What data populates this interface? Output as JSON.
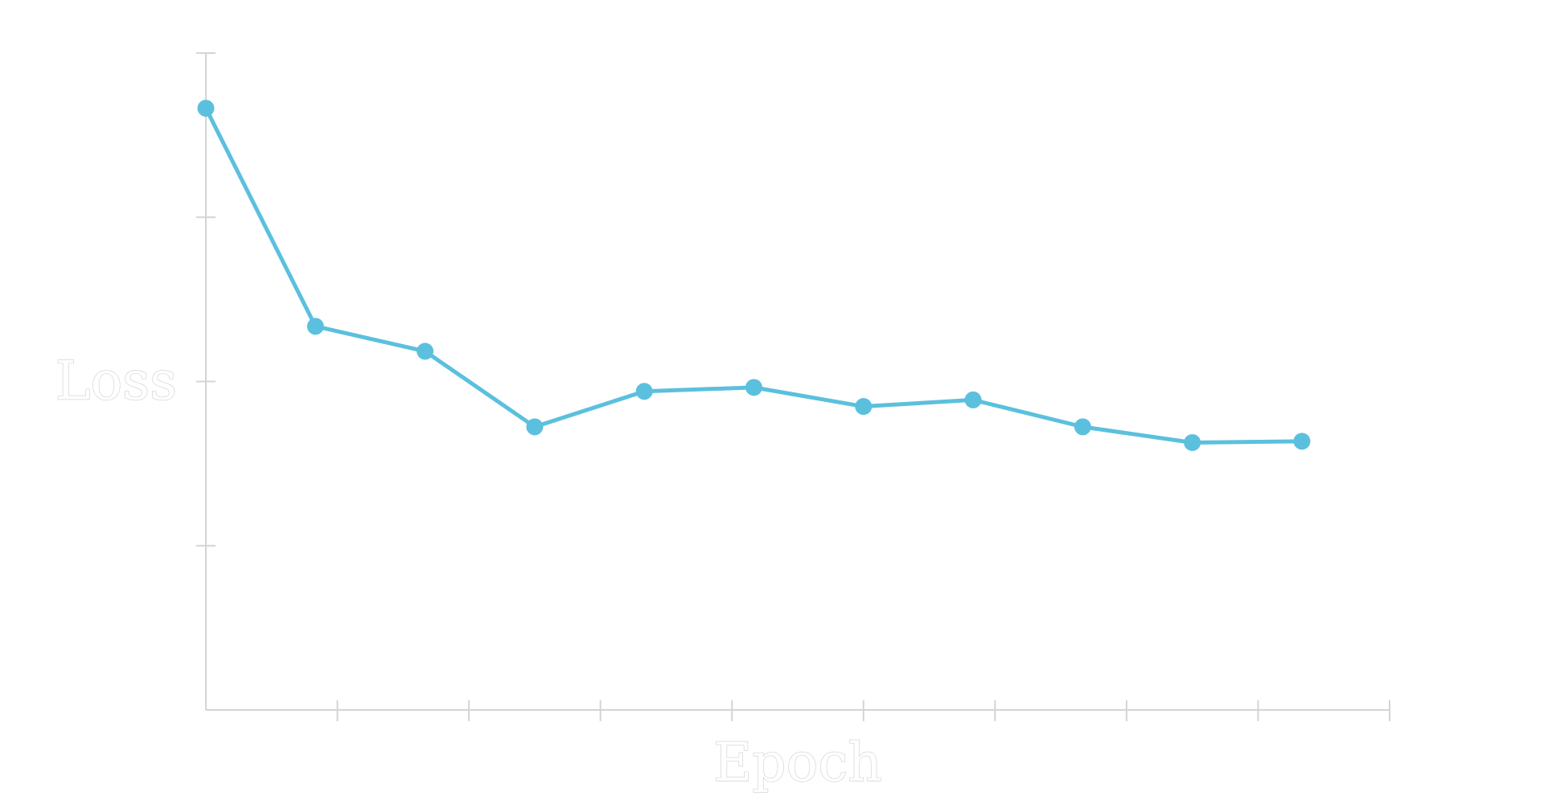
{
  "chart_data": {
    "type": "line",
    "title": "",
    "xlabel": "Epoch",
    "ylabel": "Loss",
    "x": [
      0,
      1,
      2,
      3,
      4,
      5,
      6,
      7,
      8,
      9,
      10
    ],
    "series": [
      {
        "name": "Loss",
        "values": [
          0.916,
          0.584,
          0.546,
          0.431,
          0.485,
          0.491,
          0.462,
          0.472,
          0.431,
          0.407,
          0.409
        ]
      }
    ],
    "xlim": [
      0,
      10.8
    ],
    "ylim": [
      0,
      1.0
    ],
    "x_tick_values": [
      1.2,
      2.4,
      3.6,
      4.8,
      6.0,
      7.2,
      8.4,
      9.6,
      10.8
    ],
    "y_tick_values": [
      0.25,
      0.5,
      0.75,
      1.0
    ],
    "x_tick_labels": [],
    "y_tick_labels": [],
    "grid": false,
    "legend": "none",
    "colors": {
      "line": "#5bc0de",
      "axis": "#d4d4d4",
      "background": "#ffffff"
    }
  }
}
